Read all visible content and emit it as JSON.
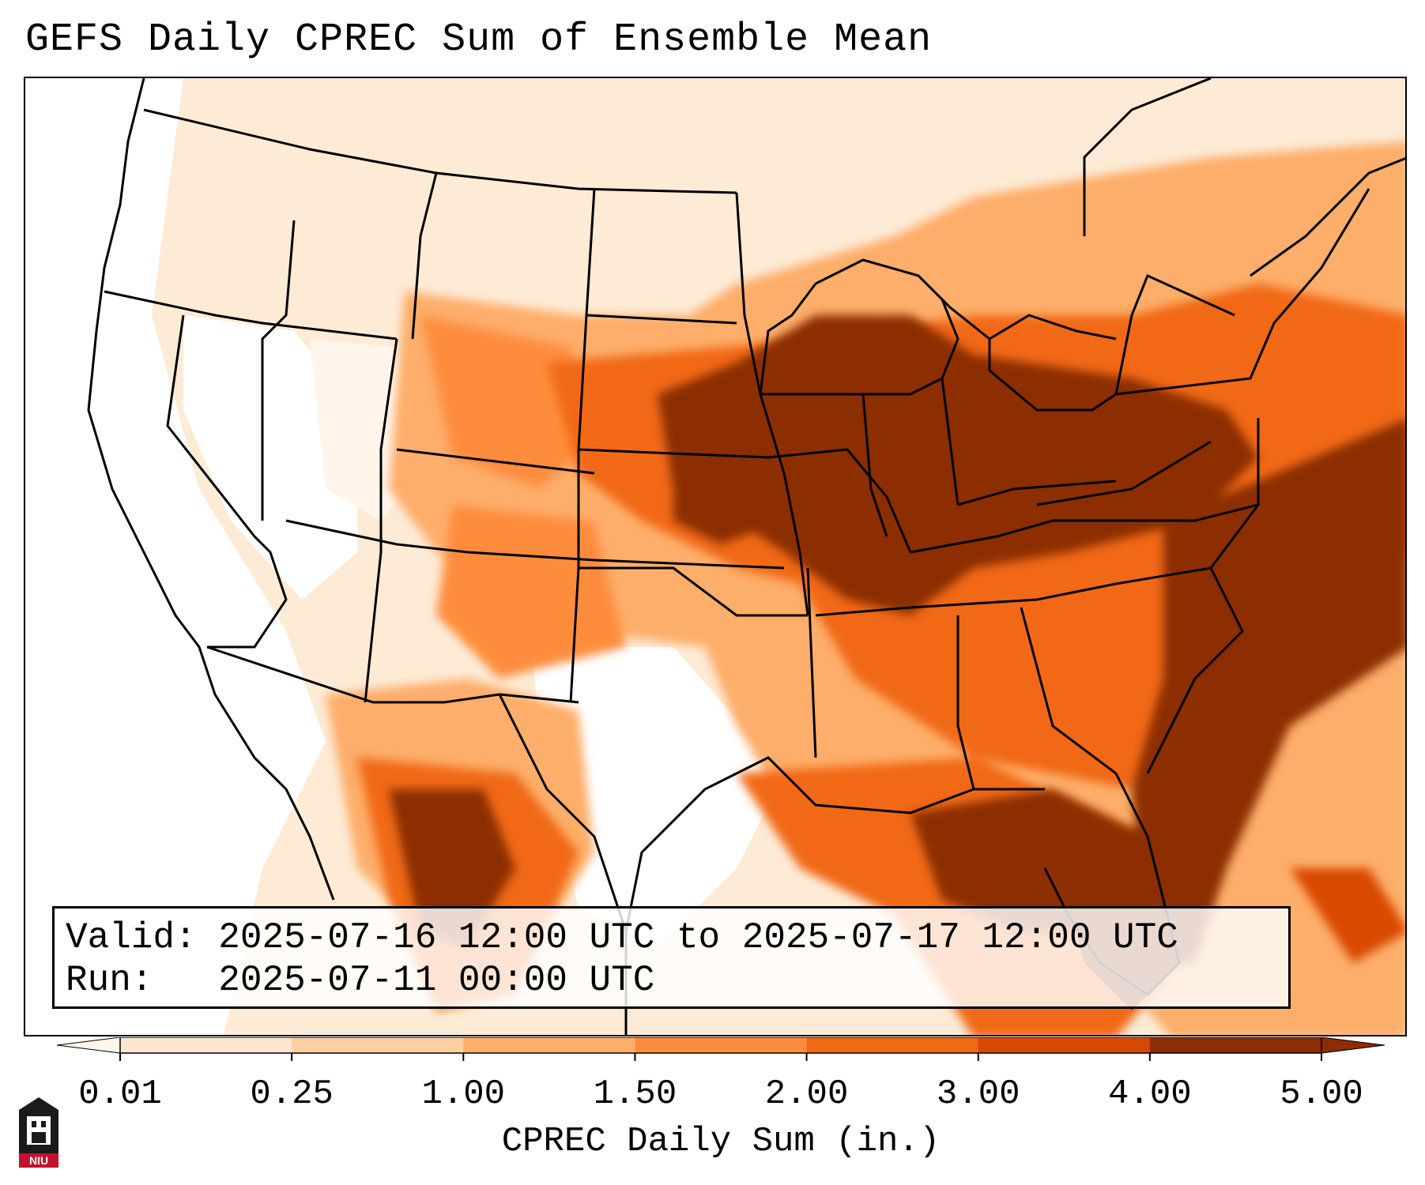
{
  "title": "GEFS Daily CPREC Sum of Ensemble Mean",
  "info": {
    "valid_label": "Valid:",
    "valid_value": "2025-07-16 12:00 UTC to 2025-07-17 12:00 UTC",
    "run_label": "Run:",
    "run_value": "2025-07-11 00:00 UTC"
  },
  "colorbar": {
    "label": "CPREC Daily Sum (in.)",
    "ticks": [
      "0.01",
      "0.25",
      "1.00",
      "1.50",
      "2.00",
      "3.00",
      "4.00",
      "5.00"
    ],
    "colors": [
      "#fff5eb",
      "#fee6ce",
      "#fdd0a2",
      "#fdae6b",
      "#fd8d3c",
      "#f16913",
      "#d94801",
      "#8c2d04"
    ],
    "extend": "both"
  },
  "map": {
    "region": "Contiguous United States",
    "field": "ensemble mean daily convective precipitation sum",
    "color_scale": "oranges"
  },
  "logo": {
    "text": "NIU"
  }
}
